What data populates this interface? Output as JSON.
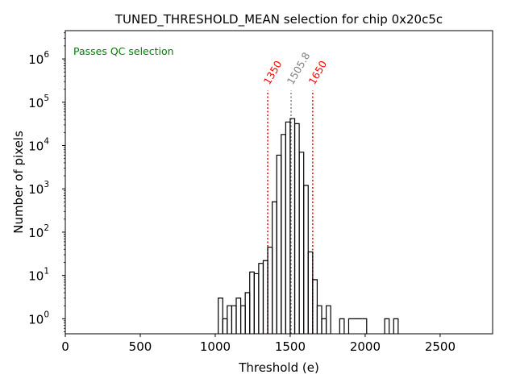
{
  "chart_data": {
    "type": "histogram",
    "title": "TUNED_THRESHOLD_MEAN selection for chip 0x20c5c",
    "xlabel": "Threshold (e)",
    "ylabel": "Number of pixels",
    "yscale": "log",
    "xlim": [
      0,
      2850
    ],
    "ylim": [
      0.45,
      4500000
    ],
    "x_ticks": [
      0,
      500,
      1000,
      1500,
      2000,
      2500
    ],
    "y_ticks": [
      {
        "value": 1,
        "base": "10",
        "exp": "0"
      },
      {
        "value": 10,
        "base": "10",
        "exp": "1"
      },
      {
        "value": 100,
        "base": "10",
        "exp": "2"
      },
      {
        "value": 1000,
        "base": "10",
        "exp": "3"
      },
      {
        "value": 10000,
        "base": "10",
        "exp": "4"
      },
      {
        "value": 100000,
        "base": "10",
        "exp": "5"
      },
      {
        "value": 1000000,
        "base": "10",
        "exp": "6"
      }
    ],
    "annotation": {
      "text": "Passes QC selection",
      "color": "#008000"
    },
    "vlines": [
      {
        "x": 1350,
        "label": "1350",
        "color": "#ff0000"
      },
      {
        "x": 1505.8,
        "label": "1505.8",
        "color": "#808080"
      },
      {
        "x": 1650,
        "label": "1650",
        "color": "#ff0000"
      }
    ],
    "bins": [
      {
        "x0": 1020,
        "x1": 1050,
        "count": 3
      },
      {
        "x0": 1050,
        "x1": 1080,
        "count": 1
      },
      {
        "x0": 1080,
        "x1": 1110,
        "count": 2
      },
      {
        "x0": 1110,
        "x1": 1140,
        "count": 2
      },
      {
        "x0": 1140,
        "x1": 1170,
        "count": 3
      },
      {
        "x0": 1170,
        "x1": 1200,
        "count": 2
      },
      {
        "x0": 1200,
        "x1": 1230,
        "count": 4
      },
      {
        "x0": 1230,
        "x1": 1260,
        "count": 12
      },
      {
        "x0": 1260,
        "x1": 1290,
        "count": 11
      },
      {
        "x0": 1290,
        "x1": 1320,
        "count": 19
      },
      {
        "x0": 1320,
        "x1": 1350,
        "count": 22
      },
      {
        "x0": 1350,
        "x1": 1380,
        "count": 45
      },
      {
        "x0": 1380,
        "x1": 1410,
        "count": 500
      },
      {
        "x0": 1410,
        "x1": 1440,
        "count": 6000
      },
      {
        "x0": 1440,
        "x1": 1470,
        "count": 18000
      },
      {
        "x0": 1470,
        "x1": 1500,
        "count": 35000
      },
      {
        "x0": 1500,
        "x1": 1530,
        "count": 42000
      },
      {
        "x0": 1530,
        "x1": 1560,
        "count": 32000
      },
      {
        "x0": 1560,
        "x1": 1590,
        "count": 7000
      },
      {
        "x0": 1590,
        "x1": 1620,
        "count": 1200
      },
      {
        "x0": 1620,
        "x1": 1650,
        "count": 35
      },
      {
        "x0": 1650,
        "x1": 1680,
        "count": 8
      },
      {
        "x0": 1680,
        "x1": 1710,
        "count": 2
      },
      {
        "x0": 1710,
        "x1": 1740,
        "count": 1
      },
      {
        "x0": 1740,
        "x1": 1770,
        "count": 2
      },
      {
        "x0": 1830,
        "x1": 1860,
        "count": 1
      },
      {
        "x0": 1890,
        "x1": 2010,
        "count": 1
      },
      {
        "x0": 2130,
        "x1": 2160,
        "count": 1
      },
      {
        "x0": 2190,
        "x1": 2220,
        "count": 1
      }
    ]
  }
}
